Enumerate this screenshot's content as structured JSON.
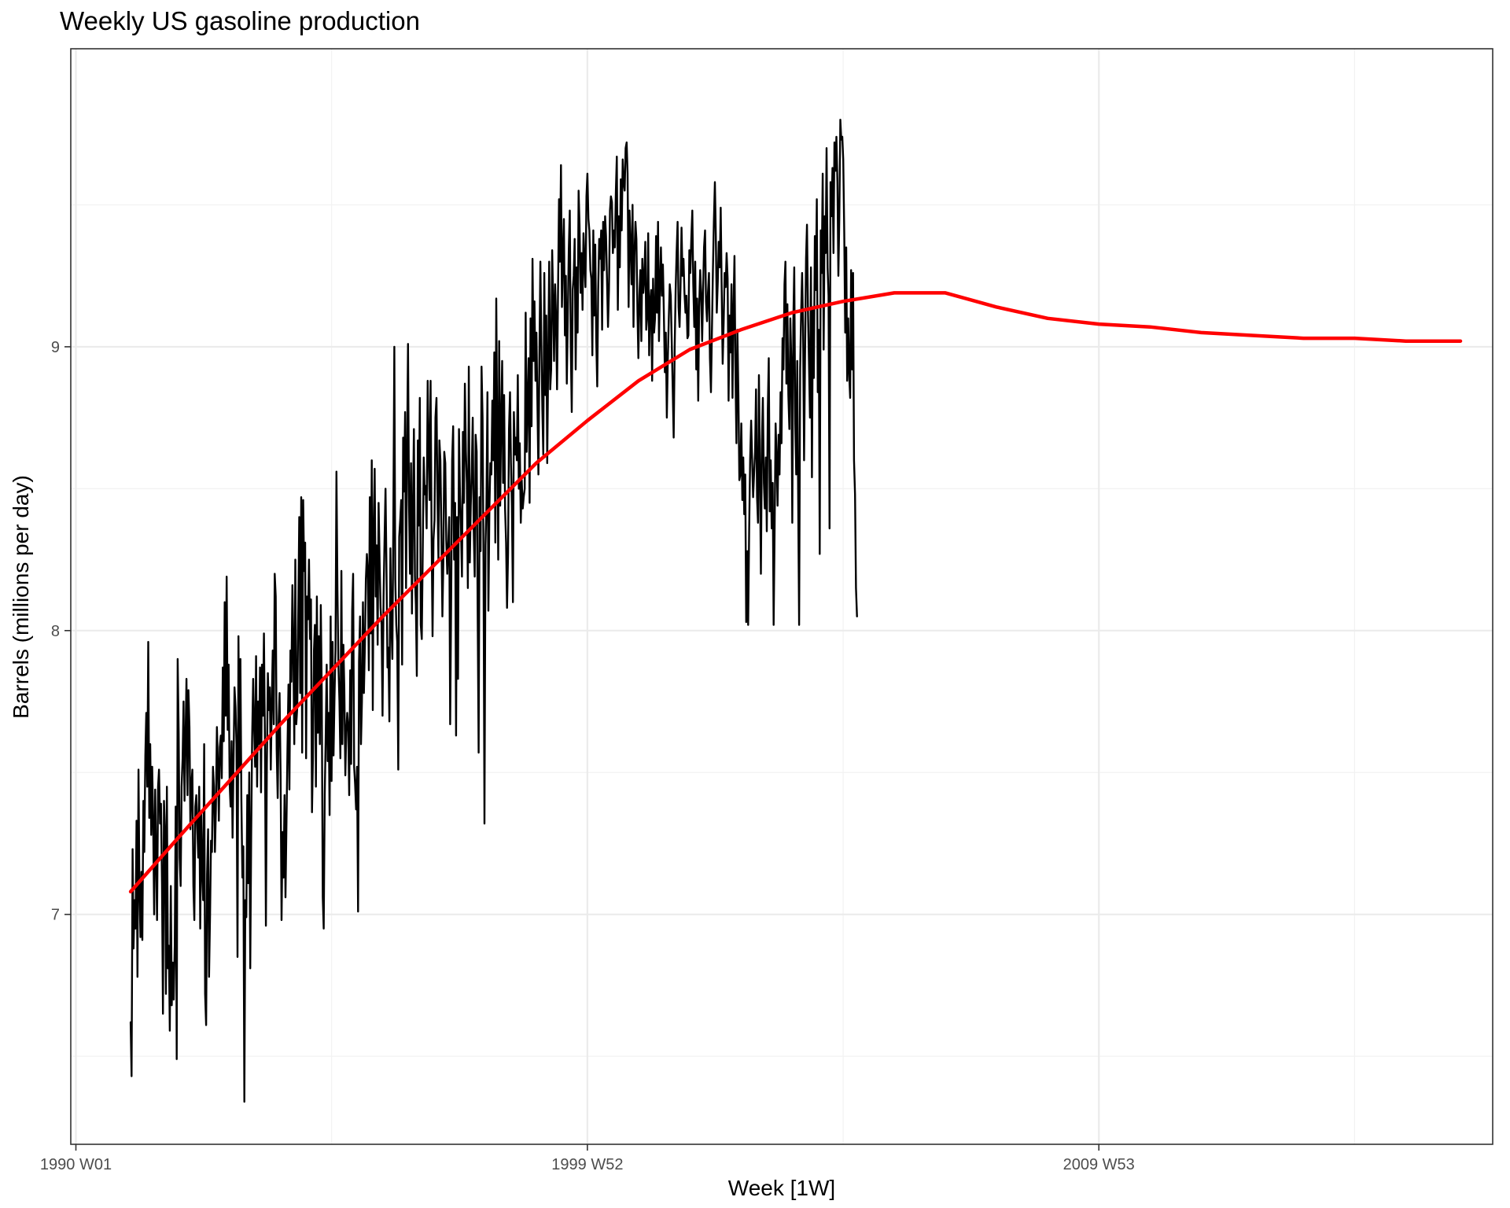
{
  "chart_data": {
    "type": "line",
    "title": "Weekly US gasoline production",
    "xlabel": "Week [1W]",
    "ylabel": "Barrels (millions per day)",
    "x_tick_labels": [
      "1990 W01",
      "1999 W52",
      "2009 W53"
    ],
    "x_tick_years": [
      1990.0,
      2000.0,
      2010.0
    ],
    "y_tick_labels": [
      "7",
      "8",
      "9"
    ],
    "y_ticks": [
      7,
      8,
      9
    ],
    "xlim": [
      1989.9,
      2017.7
    ],
    "ylim": [
      6.19,
      10.05
    ],
    "grid": true,
    "series": [
      {
        "color": "#000000",
        "kind": "observed",
        "start_year": 1991.07,
        "step_years": 0.019165,
        "values": [
          6.62,
          6.43,
          7.23,
          6.88,
          7.05,
          6.95,
          7.33,
          6.78,
          7.51,
          7.1,
          6.92,
          7.15,
          6.91,
          7.4,
          7.22,
          7.56,
          7.71,
          7.45,
          7.96,
          7.34,
          7.6,
          7.28,
          7.52,
          7.32,
          7.0,
          7.44,
          7.2,
          6.98,
          7.45,
          7.51,
          7.32,
          7.39,
          7.1,
          6.65,
          7.4,
          7.3,
          6.72,
          7.45,
          6.81,
          6.89,
          6.59,
          7.1,
          6.68,
          6.83,
          6.7,
          6.89,
          7.38,
          6.49,
          7.9,
          7.64,
          7.2,
          7.1,
          7.45,
          7.55,
          7.75,
          7.4,
          7.62,
          7.83,
          7.42,
          7.79,
          7.66,
          7.3,
          7.46,
          7.51,
          7.1,
          6.98,
          7.38,
          7.42,
          7.31,
          7.2,
          7.45,
          6.95,
          7.36,
          7.15,
          7.05,
          7.6,
          6.72,
          6.61,
          7.14,
          7.3,
          6.78,
          7.0,
          7.26,
          7.22,
          7.52,
          7.45,
          7.22,
          7.37,
          7.66,
          7.54,
          7.33,
          7.59,
          7.63,
          7.48,
          7.87,
          7.61,
          8.1,
          7.7,
          8.19,
          7.65,
          7.88,
          7.46,
          7.38,
          7.61,
          7.27,
          7.55,
          7.8,
          7.73,
          7.6,
          6.85,
          7.98,
          7.5,
          7.9,
          7.41,
          7.13,
          7.24,
          6.34,
          7.05,
          6.99,
          7.42,
          7.11,
          7.5,
          6.81,
          7.28,
          7.62,
          7.83,
          7.66,
          7.52,
          7.91,
          7.45,
          7.75,
          7.6,
          7.87,
          7.43,
          7.88,
          7.7,
          7.99,
          7.61,
          6.96,
          7.52,
          7.85,
          7.72,
          7.8,
          7.51,
          7.75,
          7.93,
          7.67,
          8.2,
          8.12,
          7.58,
          7.41,
          7.68,
          7.78,
          7.49,
          6.98,
          7.29,
          7.13,
          7.42,
          7.06,
          7.33,
          7.58,
          7.81,
          7.44,
          7.93,
          7.82,
          8.16,
          7.93,
          7.6,
          8.25,
          7.67,
          7.73,
          8.05,
          8.4,
          7.78,
          8.47,
          7.57,
          8.46,
          8.21,
          8.31,
          7.55,
          8.12,
          8.04,
          8.25,
          7.97,
          8.11,
          7.36,
          7.55,
          7.93,
          8.02,
          7.45,
          8.12,
          7.64,
          7.98,
          7.6,
          8.09,
          7.79,
          7.06,
          6.95,
          7.42,
          7.62,
          7.88,
          7.54,
          7.71,
          7.35,
          8.05,
          7.47,
          7.96,
          7.56,
          7.76,
          7.93,
          8.56,
          8.14,
          7.88,
          7.75,
          7.55,
          8.21,
          7.6,
          7.95,
          7.8,
          7.49,
          7.64,
          7.71,
          7.66,
          7.42,
          7.86,
          7.53,
          8.07,
          8.2,
          7.52,
          7.46,
          7.37,
          7.52,
          7.01,
          7.89,
          8.05,
          7.6,
          7.75,
          8.1,
          7.78,
          7.95,
          8.18,
          8.27,
          8.21,
          7.86,
          8.47,
          7.99,
          8.6,
          7.72,
          8.36,
          8.57,
          8.12,
          8.3,
          7.95,
          8.45,
          8.24,
          8.08,
          8.02,
          7.7,
          8.12,
          8.31,
          8.5,
          8.22,
          7.87,
          7.94,
          7.68,
          8.29,
          8.03,
          7.9,
          8.37,
          9.0,
          8.18,
          8.02,
          7.96,
          7.51,
          8.33,
          8.39,
          8.46,
          7.88,
          8.68,
          8.49,
          8.77,
          8.15,
          8.63,
          9.01,
          8.44,
          8.2,
          8.59,
          8.06,
          8.44,
          8.71,
          8.19,
          8.09,
          7.84,
          8.67,
          8.37,
          8.82,
          8.02,
          7.97,
          8.27,
          8.61,
          8.48,
          8.51,
          8.36,
          8.88,
          8.65,
          8.46,
          8.88,
          8.37,
          7.98,
          8.32,
          8.39,
          8.75,
          8.82,
          8.48,
          8.25,
          8.67,
          8.6,
          8.36,
          8.05,
          8.24,
          8.63,
          8.59,
          8.32,
          8.2,
          8.3,
          8.4,
          7.67,
          8.12,
          8.6,
          8.72,
          8.25,
          8.45,
          7.63,
          8.4,
          7.83,
          8.71,
          8.48,
          8.37,
          8.19,
          8.7,
          8.45,
          8.87,
          8.63,
          8.52,
          8.15,
          8.93,
          8.24,
          8.44,
          8.56,
          8.75,
          8.36,
          8.19,
          8.69,
          8.63,
          8.09,
          7.57,
          8.47,
          8.28,
          8.93,
          8.75,
          8.24,
          7.32,
          8.3,
          8.44,
          8.84,
          8.07,
          8.43,
          8.59,
          8.55,
          8.81,
          8.6,
          8.98,
          8.31,
          9.17,
          8.66,
          8.25,
          9.02,
          8.44,
          8.73,
          8.95,
          8.52,
          8.83,
          8.43,
          8.31,
          8.08,
          8.27,
          8.71,
          8.84,
          8.59,
          8.44,
          8.1,
          8.77,
          8.62,
          8.68,
          8.6,
          8.9,
          8.5,
          8.66,
          8.38,
          8.53,
          8.43,
          8.47,
          8.5,
          9.12,
          8.63,
          8.81,
          8.96,
          8.45,
          9.1,
          8.72,
          9.31,
          8.95,
          9.16,
          8.88,
          9.05,
          8.79,
          8.55,
          8.95,
          9.3,
          9.02,
          8.78,
          8.62,
          9.26,
          8.83,
          9.11,
          8.59,
          8.96,
          9.3,
          8.85,
          8.92,
          9.34,
          9.17,
          8.95,
          9.22,
          9.11,
          8.85,
          9.18,
          9.52,
          9.3,
          9.64,
          9.14,
          9.33,
          9.45,
          9.04,
          9.25,
          8.87,
          9.11,
          9.34,
          9.48,
          9.01,
          8.77,
          9.2,
          9.25,
          9.38,
          8.92,
          9.28,
          9.05,
          9.55,
          9.43,
          9.19,
          9.33,
          9.13,
          9.4,
          9.29,
          9.21,
          9.53,
          9.61,
          9.45,
          9.41,
          9.27,
          9.24,
          8.97,
          9.41,
          9.11,
          9.36,
          9.03,
          8.86,
          9.2,
          9.38,
          9.31,
          9.41,
          9.06,
          9.44,
          9.27,
          9.46,
          9.39,
          9.24,
          9.07,
          9.2,
          9.48,
          9.53,
          9.51,
          9.33,
          9.41,
          9.35,
          9.55,
          9.67,
          9.13,
          9.46,
          9.28,
          9.59,
          9.41,
          9.66,
          9.58,
          9.55,
          9.7,
          9.72,
          9.61,
          9.14,
          9.48,
          9.36,
          9.22,
          9.5,
          9.07,
          9.32,
          9.44,
          9.38,
          9.13,
          8.96,
          9.18,
          9.27,
          9.02,
          9.31,
          9.19,
          9.24,
          9.37,
          9.06,
          9.11,
          9.4,
          8.97,
          9.16,
          9.2,
          8.88,
          9.24,
          9.05,
          9.1,
          9.39,
          9.12,
          9.44,
          9.02,
          9.23,
          9.35,
          9.18,
          9.29,
          9.12,
          8.91,
          9.05,
          8.75,
          8.95,
          9.1,
          9.22,
          9.18,
          9.02,
          8.85,
          8.68,
          9.0,
          9.2,
          9.33,
          9.44,
          9.14,
          9.07,
          9.21,
          9.42,
          9.25,
          9.31,
          9.19,
          9.12,
          9.18,
          9.03,
          9.04,
          9.34,
          9.26,
          9.38,
          9.48,
          9.22,
          9.07,
          9.3,
          8.92,
          9.17,
          8.81,
          9.14,
          9.27,
          9.19,
          9.02,
          9.2,
          9.35,
          9.41,
          9.16,
          9.09,
          9.19,
          9.26,
          8.96,
          8.84,
          9.05,
          9.27,
          9.44,
          9.58,
          9.39,
          9.12,
          9.23,
          9.37,
          9.28,
          9.49,
          9.19,
          8.94,
          9.09,
          9.26,
          9.21,
          9.33,
          9.24,
          8.81,
          9.11,
          8.98,
          9.22,
          8.82,
          9.13,
          9.32,
          8.92,
          8.66,
          9.06,
          8.83,
          8.53,
          8.55,
          8.73,
          8.46,
          8.61,
          8.41,
          8.55,
          8.03,
          8.28,
          8.02,
          8.36,
          8.6,
          8.74,
          8.61,
          8.47,
          8.55,
          8.63,
          8.85,
          8.47,
          8.38,
          8.9,
          8.55,
          8.2,
          8.67,
          8.82,
          8.52,
          8.43,
          8.61,
          8.35,
          8.78,
          8.96,
          8.42,
          8.6,
          8.36,
          8.52,
          8.02,
          8.37,
          8.73,
          8.61,
          8.44,
          8.69,
          8.55,
          8.84,
          8.66,
          9.03,
          8.92,
          9.22,
          9.3,
          8.87,
          9.15,
          8.83,
          8.71,
          9.1,
          8.95,
          8.38,
          9.08,
          9.28,
          8.73,
          8.55,
          8.95,
          8.47,
          8.02,
          8.92,
          9.11,
          9.26,
          9.07,
          8.6,
          8.96,
          9.31,
          9.43,
          9.12,
          8.95,
          8.75,
          9.28,
          8.54,
          9.14,
          8.89,
          9.39,
          9.2,
          9.52,
          8.84,
          9.06,
          8.27,
          9.41,
          9.26,
          9.61,
          8.99,
          9.46,
          9.33,
          9.7,
          9.28,
          9.18,
          8.36,
          9.58,
          9.46,
          9.63,
          9.33,
          9.72,
          9.62,
          9.74,
          9.58,
          9.25,
          9.45,
          9.8,
          9.73,
          9.74,
          9.66,
          9.4,
          9.05,
          9.35,
          8.88,
          9.1,
          8.91,
          8.82,
          9.27,
          8.92,
          9.26,
          8.6,
          8.48,
          8.15,
          8.05
        ]
      },
      {
        "color": "#ff0000",
        "kind": "trend",
        "points": [
          [
            1991.07,
            7.08
          ],
          [
            1992.0,
            7.27
          ],
          [
            1993.0,
            7.47
          ],
          [
            1994.0,
            7.67
          ],
          [
            1995.0,
            7.86
          ],
          [
            1996.0,
            8.05
          ],
          [
            1997.0,
            8.23
          ],
          [
            1998.0,
            8.41
          ],
          [
            1999.0,
            8.59
          ],
          [
            2000.0,
            8.74
          ],
          [
            2001.0,
            8.88
          ],
          [
            2002.0,
            8.99
          ],
          [
            2003.0,
            9.06
          ],
          [
            2004.0,
            9.12
          ],
          [
            2005.0,
            9.16
          ],
          [
            2006.0,
            9.19
          ],
          [
            2007.0,
            9.19
          ],
          [
            2008.0,
            9.14
          ],
          [
            2009.0,
            9.1
          ],
          [
            2010.0,
            9.08
          ],
          [
            2011.0,
            9.07
          ],
          [
            2012.0,
            9.05
          ],
          [
            2013.0,
            9.04
          ],
          [
            2014.0,
            9.03
          ],
          [
            2015.0,
            9.03
          ],
          [
            2016.0,
            9.02
          ],
          [
            2017.07,
            9.02
          ]
        ]
      }
    ]
  }
}
